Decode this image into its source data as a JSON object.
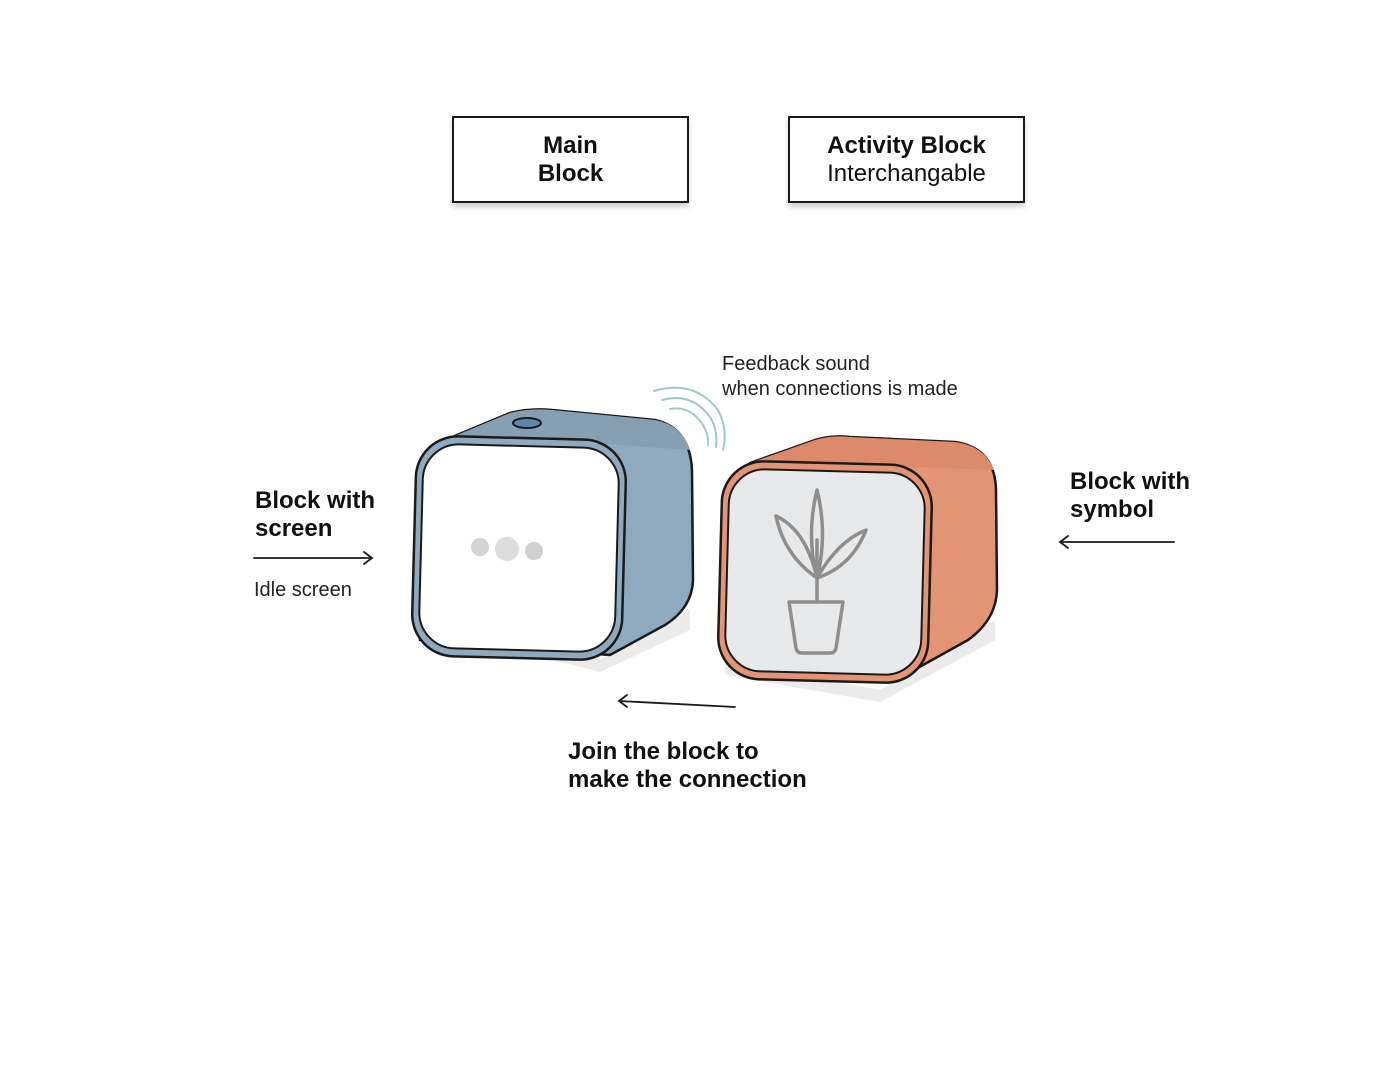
{
  "header_boxes": {
    "main": {
      "line1": "Main",
      "line2": "Block"
    },
    "activity": {
      "title": "Activity Block",
      "subtitle": "Interchangable"
    }
  },
  "annotations": {
    "feedback_line1": "Feedback sound",
    "feedback_line2": "when connections is made",
    "left_line1": "Block with",
    "left_line2": "screen",
    "idle": "Idle screen",
    "right_line1": "Block with",
    "right_line2": "symbol",
    "join_line1": "Join the block to",
    "join_line2": "make the connection"
  },
  "icons": {
    "main_screen": "loading-dots-icon",
    "activity_symbol": "potted-plant-icon",
    "sound": "sound-waves-icon"
  },
  "colors": {
    "main_block": "#8faabf",
    "activity_block": "#e29475",
    "screen_white": "#ffffff",
    "screen_grey": "#e8e9ea",
    "sound_waves": "#9ec9c4",
    "outline": "#1a1a1a"
  }
}
